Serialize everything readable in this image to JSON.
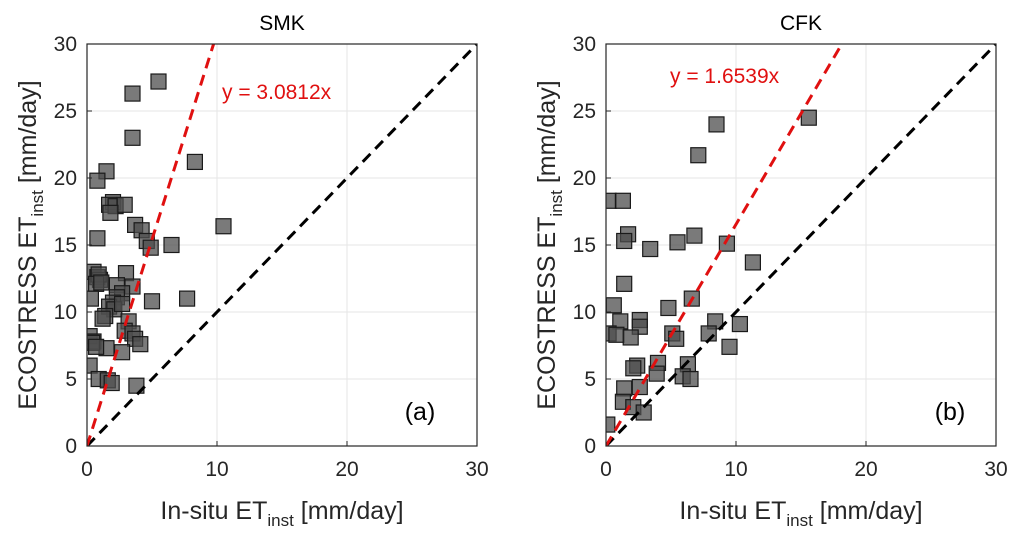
{
  "chart_data": [
    {
      "type": "scatter",
      "panel": "(a)",
      "title": "SMK",
      "xlabel": {
        "main": "In-situ ET",
        "sub": "inst",
        "unit": " [mm/day]"
      },
      "ylabel": {
        "main": "ECOSTRESS ET",
        "sub": "inst",
        "unit": " [mm/day]"
      },
      "xlim": [
        0,
        30
      ],
      "ylim": [
        0,
        30
      ],
      "xticks": [
        0,
        10,
        20,
        30
      ],
      "yticks": [
        0,
        5,
        10,
        15,
        20,
        25,
        30
      ],
      "grid": true,
      "fit": {
        "slope": 3.0812,
        "label": "y = 3.0812x",
        "color": "#e01010"
      },
      "one_to_one": {
        "color": "#000000"
      },
      "marker_color": "#4d4d4d",
      "points": [
        [
          3.5,
          26.3
        ],
        [
          5.5,
          27.2
        ],
        [
          3.5,
          23.0
        ],
        [
          8.3,
          21.2
        ],
        [
          1.5,
          20.5
        ],
        [
          0.8,
          19.8
        ],
        [
          2.0,
          18.2
        ],
        [
          1.7,
          18.0
        ],
        [
          2.2,
          17.9
        ],
        [
          2.9,
          18.0
        ],
        [
          1.8,
          17.4
        ],
        [
          3.7,
          16.5
        ],
        [
          4.2,
          16.1
        ],
        [
          10.5,
          16.4
        ],
        [
          0.8,
          15.5
        ],
        [
          4.6,
          15.3
        ],
        [
          4.9,
          14.8
        ],
        [
          6.5,
          15.0
        ],
        [
          0.5,
          13.0
        ],
        [
          0.8,
          12.6
        ],
        [
          1.0,
          12.4
        ],
        [
          0.9,
          12.8
        ],
        [
          0.7,
          12.1
        ],
        [
          1.1,
          12.2
        ],
        [
          3.0,
          12.9
        ],
        [
          2.3,
          12.0
        ],
        [
          3.5,
          11.9
        ],
        [
          2.7,
          11.4
        ],
        [
          2.3,
          11.1
        ],
        [
          2.0,
          10.7
        ],
        [
          0.3,
          11.0
        ],
        [
          1.7,
          10.4
        ],
        [
          2.1,
          10.2
        ],
        [
          2.7,
          10.6
        ],
        [
          5.0,
          10.8
        ],
        [
          7.7,
          11.0
        ],
        [
          1.4,
          9.7
        ],
        [
          1.2,
          9.5
        ],
        [
          3.2,
          9.3
        ],
        [
          2.9,
          8.6
        ],
        [
          0.2,
          8.2
        ],
        [
          0.5,
          7.8
        ],
        [
          3.5,
          8.4
        ],
        [
          3.7,
          8.0
        ],
        [
          1.5,
          7.3
        ],
        [
          0.4,
          7.7
        ],
        [
          0.7,
          7.4
        ],
        [
          4.1,
          7.6
        ],
        [
          2.7,
          7.0
        ],
        [
          0.2,
          6.0
        ],
        [
          0.9,
          5.0
        ],
        [
          1.6,
          4.9
        ],
        [
          1.9,
          4.7
        ],
        [
          3.8,
          4.5
        ]
      ]
    },
    {
      "type": "scatter",
      "panel": "(b)",
      "title": "CFK",
      "xlabel": {
        "main": "In-situ ET",
        "sub": "inst",
        "unit": " [mm/day]"
      },
      "ylabel": {
        "main": "ECOSTRESS ET",
        "sub": "inst",
        "unit": " [mm/day]"
      },
      "xlim": [
        0,
        30
      ],
      "ylim": [
        0,
        30
      ],
      "xticks": [
        0,
        10,
        20,
        30
      ],
      "yticks": [
        0,
        5,
        10,
        15,
        20,
        25,
        30
      ],
      "grid": true,
      "fit": {
        "slope": 1.6539,
        "label": "y = 1.6539x",
        "color": "#e01010"
      },
      "one_to_one": {
        "color": "#000000"
      },
      "marker_color": "#4d4d4d",
      "points": [
        [
          15.6,
          24.5
        ],
        [
          8.5,
          24.0
        ],
        [
          7.1,
          21.7
        ],
        [
          0.2,
          18.3
        ],
        [
          1.3,
          18.3
        ],
        [
          1.7,
          15.8
        ],
        [
          1.4,
          15.3
        ],
        [
          6.8,
          15.7
        ],
        [
          5.5,
          15.2
        ],
        [
          3.4,
          14.7
        ],
        [
          9.3,
          15.1
        ],
        [
          11.3,
          13.7
        ],
        [
          1.4,
          12.1
        ],
        [
          6.6,
          11.0
        ],
        [
          4.8,
          10.3
        ],
        [
          0.6,
          10.5
        ],
        [
          1.1,
          9.3
        ],
        [
          2.6,
          9.4
        ],
        [
          2.6,
          8.9
        ],
        [
          8.4,
          9.3
        ],
        [
          10.3,
          9.1
        ],
        [
          0.2,
          8.4
        ],
        [
          0.8,
          8.3
        ],
        [
          5.1,
          8.4
        ],
        [
          5.4,
          8.0
        ],
        [
          7.9,
          8.4
        ],
        [
          9.5,
          7.4
        ],
        [
          1.9,
          8.1
        ],
        [
          4.0,
          6.2
        ],
        [
          6.3,
          6.1
        ],
        [
          2.4,
          6.0
        ],
        [
          2.1,
          5.8
        ],
        [
          3.9,
          5.4
        ],
        [
          5.9,
          5.2
        ],
        [
          6.5,
          5.0
        ],
        [
          1.4,
          4.3
        ],
        [
          2.6,
          4.4
        ],
        [
          1.3,
          3.3
        ],
        [
          2.1,
          2.9
        ],
        [
          2.9,
          2.5
        ],
        [
          0.1,
          1.6
        ]
      ]
    }
  ]
}
